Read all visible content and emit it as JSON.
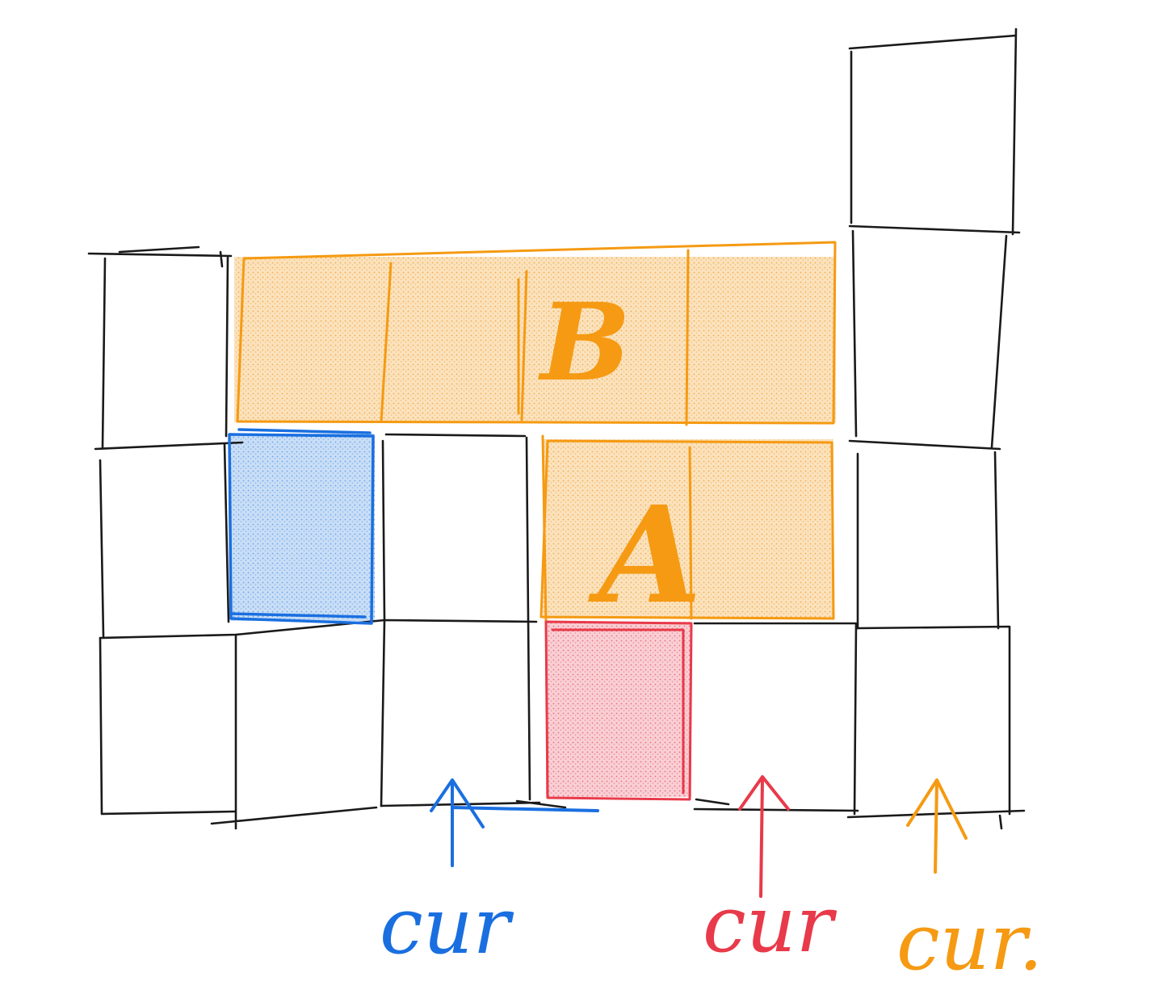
{
  "diagram": {
    "colors": {
      "grid": "#1a1a1a",
      "orange": "#f59a12",
      "orange_fill": "#f7c98a",
      "blue": "#1a6fe0",
      "blue_fill": "#8fbcef",
      "red": "#e83a4a",
      "red_fill": "#f19aa4"
    },
    "blocks": {
      "B": {
        "label": "B"
      },
      "A": {
        "label": "A"
      }
    },
    "pointers": [
      {
        "id": "blue",
        "label": "cur"
      },
      {
        "id": "red",
        "label": "cur"
      },
      {
        "id": "orange",
        "label": "cur."
      }
    ]
  }
}
